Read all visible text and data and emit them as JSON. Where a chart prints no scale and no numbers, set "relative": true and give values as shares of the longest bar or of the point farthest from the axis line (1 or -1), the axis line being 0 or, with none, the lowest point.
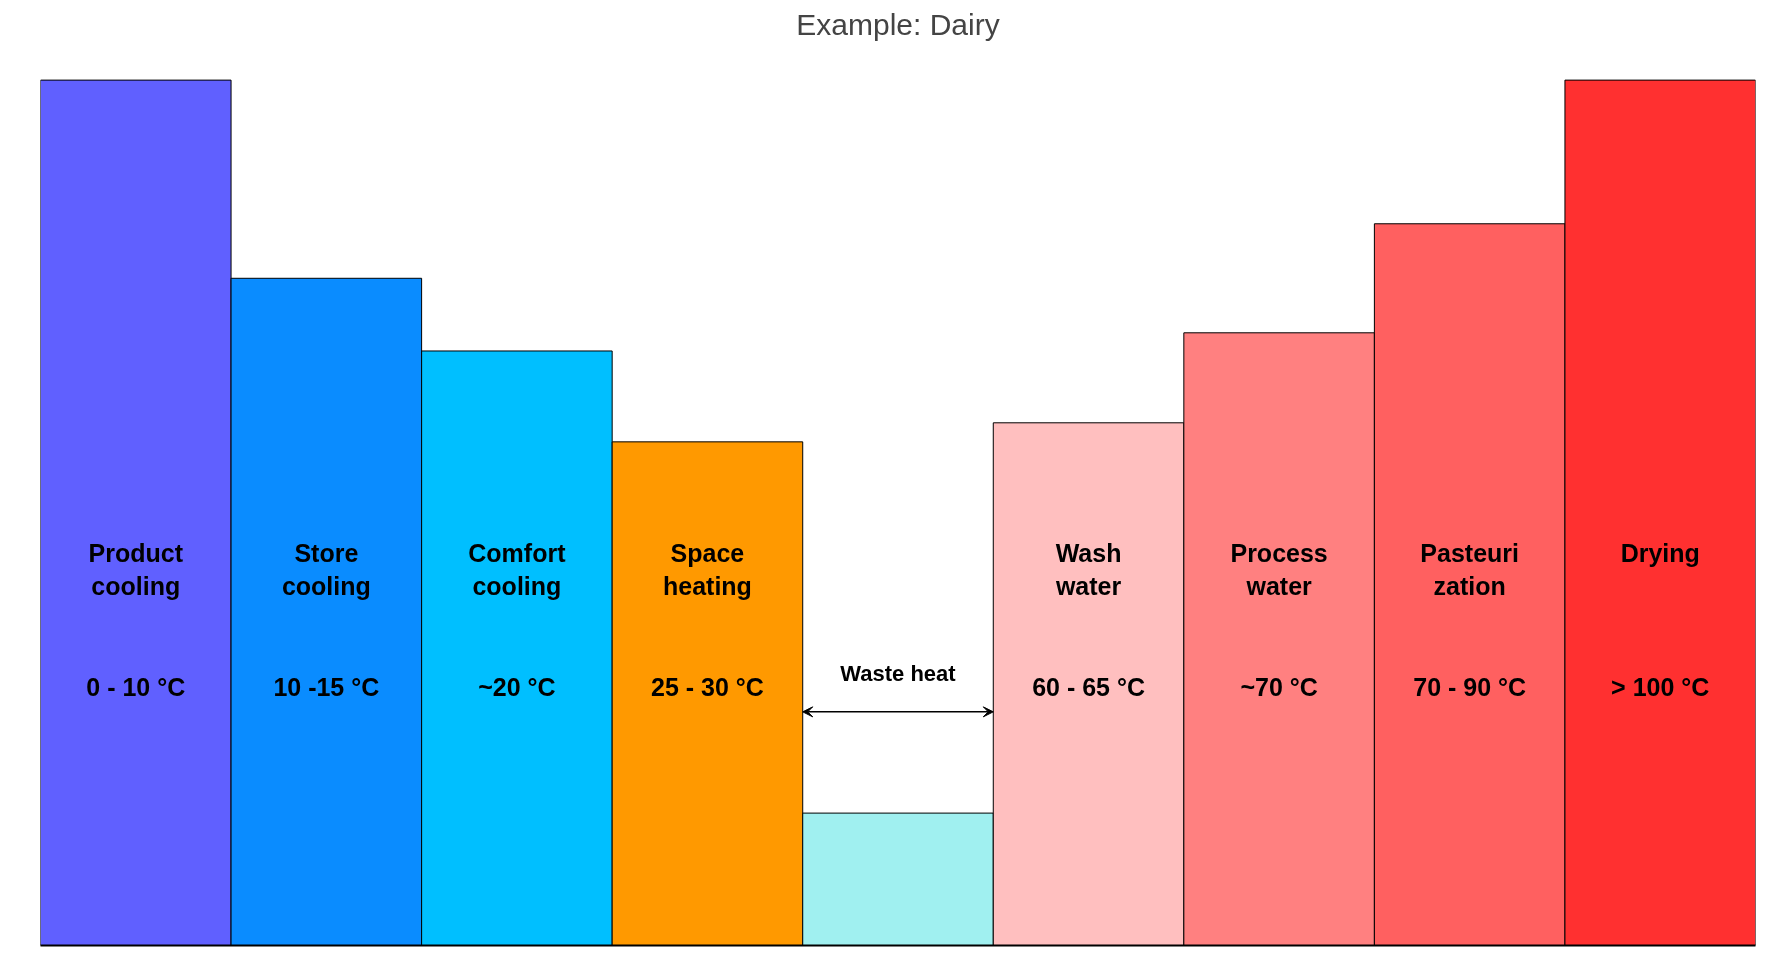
{
  "chart_data": {
    "type": "bar",
    "title": "Example: Dairy",
    "relative": true,
    "categories": [
      "Product\ncooling\n\n\n0 - 10 °C",
      "Store\ncooling\n\n\n10 -15 °C",
      "Comfort\ncooling\n\n\n~20 °C",
      "Space\nheating\n\n\n25 - 30 °C",
      "Waste heat",
      "Wash\nwater\n\n\n60 - 65 °C",
      "Process\nwater\n\n\n~70 °C",
      "Pasteuri\nzation\n\n\n70 - 90 °C",
      "Drying\n\n\n\n> 100 °C"
    ],
    "values": [
      1.0,
      0.771,
      0.687,
      0.582,
      0.153,
      0.604,
      0.708,
      0.834,
      1.0
    ],
    "colors": [
      "#6060ff",
      "#0a8cff",
      "#00bfff",
      "#ff9900",
      "#a0f0f0",
      "#ffbfbf",
      "#ff8080",
      "#ff6060",
      "#ff3030"
    ]
  }
}
